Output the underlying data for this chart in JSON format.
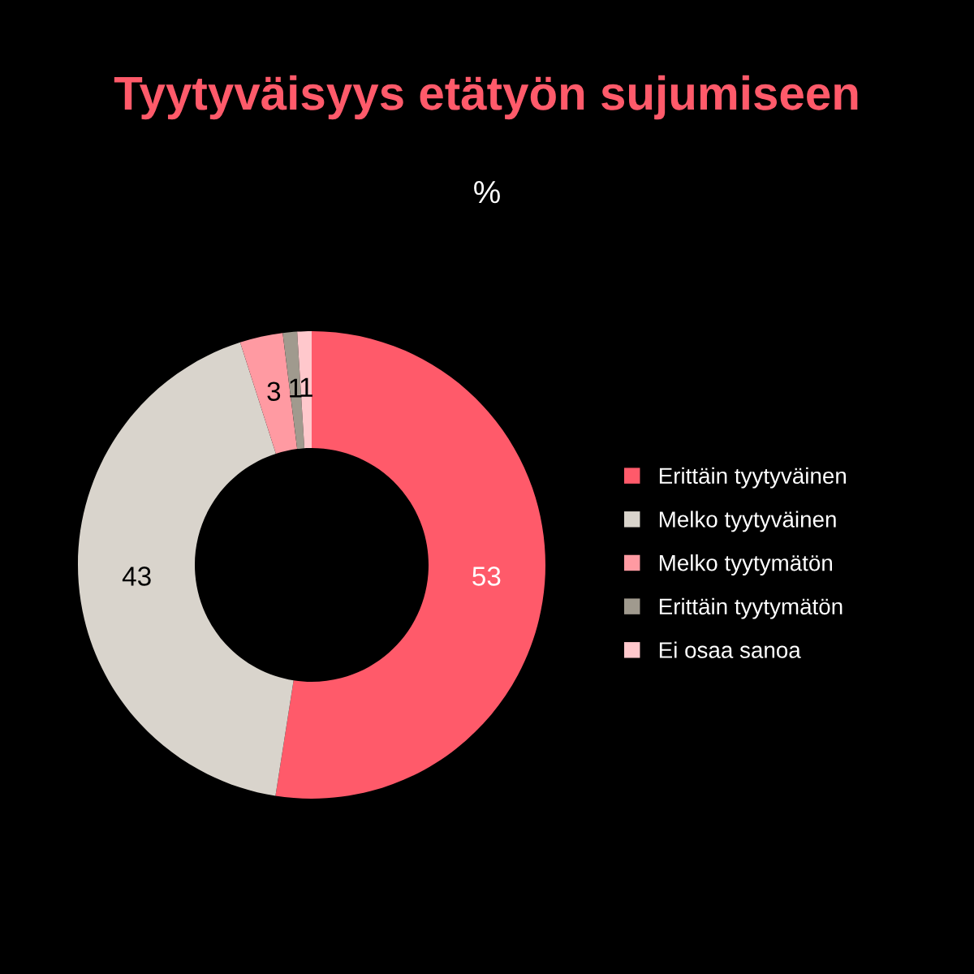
{
  "chart_data": {
    "type": "donut",
    "title": "Tyytyväisyys etätyön sujumiseen",
    "subtitle": "%",
    "categories": [
      "Erittäin tyytyväinen",
      "Melko tyytyväinen",
      "Melko tyytymätön",
      "Erittäin tyytymätön",
      "Ei osaa sanoa"
    ],
    "values": [
      53,
      43,
      3,
      1,
      1
    ],
    "colors": [
      "#ff5a6a",
      "#d9d4cc",
      "#ff9aa2",
      "#a09a8e",
      "#ffc8cc"
    ],
    "data_labels": true,
    "legend": "right"
  }
}
